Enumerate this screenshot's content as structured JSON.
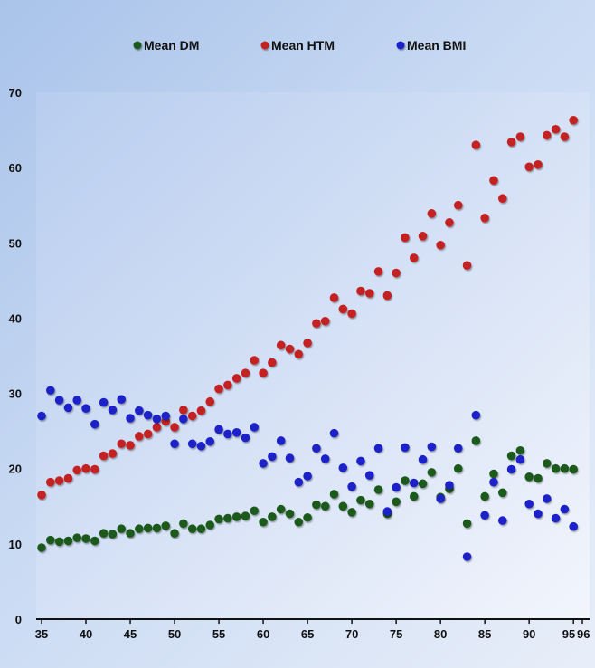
{
  "chart_data": {
    "type": "scatter",
    "xlim": [
      35,
      96
    ],
    "ylim": [
      0,
      70
    ],
    "x_ticks": [
      35,
      40,
      45,
      50,
      55,
      60,
      65,
      70,
      75,
      80,
      85,
      90,
      95,
      96
    ],
    "y_ticks": [
      0,
      10,
      20,
      30,
      40,
      50,
      60,
      70
    ],
    "grid": false,
    "legend_position": "top-center",
    "series": [
      {
        "name": "Mean DM",
        "color": "#1f5a1f",
        "x": [
          35,
          36,
          37,
          38,
          39,
          40,
          41,
          42,
          43,
          44,
          45,
          46,
          47,
          48,
          49,
          50,
          51,
          52,
          53,
          54,
          55,
          56,
          57,
          58,
          59,
          60,
          61,
          62,
          63,
          64,
          65,
          66,
          67,
          68,
          69,
          70,
          71,
          72,
          73,
          74,
          75,
          76,
          77,
          78,
          79,
          80,
          81,
          82,
          83,
          84,
          85,
          86,
          87,
          88,
          89,
          90,
          91,
          92,
          93,
          94,
          95
        ],
        "y": [
          9.5,
          10.5,
          10.3,
          10.4,
          10.8,
          10.7,
          10.4,
          11.4,
          11.3,
          12.0,
          11.4,
          12.0,
          12.1,
          12.1,
          12.4,
          11.4,
          12.7,
          12.0,
          12.0,
          12.5,
          13.3,
          13.4,
          13.6,
          13.7,
          14.4,
          12.9,
          13.6,
          14.6,
          14.0,
          12.9,
          13.5,
          15.2,
          15.0,
          16.6,
          15.0,
          14.2,
          15.8,
          15.3,
          17.2,
          14.0,
          15.6,
          18.4,
          16.3,
          18.0,
          19.5,
          16.2,
          17.3,
          20.0,
          12.7,
          23.7,
          16.3,
          19.3,
          16.8,
          21.7,
          22.4,
          18.9,
          18.7,
          20.7,
          20.0,
          20.0,
          19.9
        ]
      },
      {
        "name": "Mean HTM",
        "color": "#c42222",
        "x": [
          35,
          36,
          37,
          38,
          39,
          40,
          41,
          42,
          43,
          44,
          45,
          46,
          47,
          48,
          49,
          50,
          51,
          52,
          53,
          54,
          55,
          56,
          57,
          58,
          59,
          60,
          61,
          62,
          63,
          64,
          65,
          66,
          67,
          68,
          69,
          70,
          71,
          72,
          73,
          74,
          75,
          76,
          77,
          78,
          79,
          80,
          81,
          82,
          83,
          84,
          85,
          86,
          87,
          88,
          89,
          90,
          91,
          92,
          93,
          94,
          95
        ],
        "y": [
          16.5,
          18.2,
          18.4,
          18.7,
          19.8,
          20.0,
          19.9,
          21.7,
          22.0,
          23.3,
          23.1,
          24.3,
          24.6,
          25.5,
          26.3,
          25.5,
          27.8,
          27.0,
          27.7,
          28.9,
          30.6,
          31.1,
          32.0,
          32.7,
          34.4,
          32.7,
          34.1,
          36.4,
          35.9,
          35.2,
          36.7,
          39.3,
          39.6,
          42.7,
          41.2,
          40.6,
          43.6,
          43.3,
          46.2,
          43.0,
          46.0,
          50.7,
          48.0,
          50.9,
          53.9,
          49.7,
          52.7,
          55.0,
          47.0,
          63.0,
          53.3,
          58.3,
          55.9,
          63.4,
          64.1,
          60.1,
          60.4,
          64.3,
          65.1,
          64.1,
          66.3
        ]
      },
      {
        "name": "Mean BMI",
        "color": "#1c24c8",
        "x": [
          35,
          36,
          37,
          38,
          39,
          40,
          41,
          42,
          43,
          44,
          45,
          46,
          47,
          48,
          49,
          50,
          51,
          52,
          53,
          54,
          55,
          56,
          57,
          58,
          59,
          60,
          61,
          62,
          63,
          64,
          65,
          66,
          67,
          68,
          69,
          70,
          71,
          72,
          73,
          74,
          75,
          76,
          77,
          78,
          79,
          80,
          81,
          82,
          83,
          84,
          85,
          86,
          87,
          88,
          89,
          90,
          91,
          92,
          93,
          94,
          95
        ],
        "y": [
          27.0,
          30.4,
          29.1,
          28.1,
          29.1,
          28.0,
          25.9,
          28.8,
          27.8,
          29.2,
          26.7,
          27.7,
          27.1,
          26.6,
          27.0,
          23.3,
          26.6,
          23.3,
          23.0,
          23.6,
          25.2,
          24.6,
          24.8,
          24.1,
          25.5,
          20.7,
          21.6,
          23.7,
          21.4,
          18.2,
          19.0,
          22.7,
          21.3,
          24.7,
          20.1,
          17.6,
          21.0,
          19.1,
          22.7,
          14.3,
          17.5,
          22.8,
          18.1,
          21.2,
          22.9,
          16.0,
          17.8,
          22.7,
          8.3,
          27.1,
          13.8,
          18.2,
          13.1,
          19.9,
          21.2,
          15.3,
          14.0,
          16.0,
          13.4,
          14.6,
          12.3
        ]
      }
    ]
  }
}
